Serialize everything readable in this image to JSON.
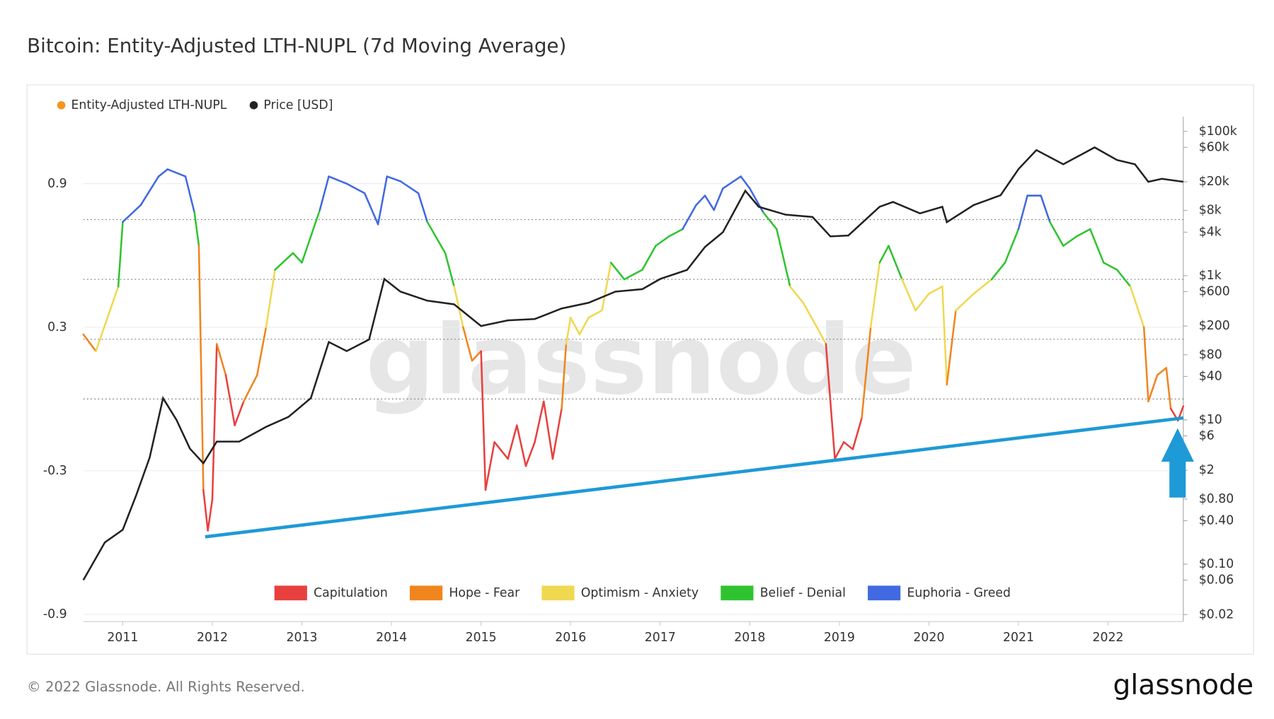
{
  "chart_data": {
    "type": "line",
    "title": "Bitcoin: Entity-Adjusted LTH-NUPL (7d Moving Average)",
    "xlim": [
      2010.56,
      2022.84
    ],
    "xticks": [
      2011,
      2012,
      2013,
      2014,
      2015,
      2016,
      2017,
      2018,
      2019,
      2020,
      2021,
      2022
    ],
    "ylim": [
      -0.93,
      1.18
    ],
    "yticks": [
      0.9,
      0.3,
      -0.3,
      -0.9
    ],
    "y2lim": [
      0.016,
      160000
    ],
    "y2log": true,
    "y2ticks": [
      {
        "value": 100000,
        "label": "$100k"
      },
      {
        "value": 60000,
        "label": "$60k"
      },
      {
        "value": 20000,
        "label": "$20k"
      },
      {
        "value": 8000,
        "label": "$8k"
      },
      {
        "value": 4000,
        "label": "$4k"
      },
      {
        "value": 1000,
        "label": "$1k"
      },
      {
        "value": 600,
        "label": "$600"
      },
      {
        "value": 200,
        "label": "$200"
      },
      {
        "value": 80,
        "label": "$80"
      },
      {
        "value": 40,
        "label": "$40"
      },
      {
        "value": 10,
        "label": "$10"
      },
      {
        "value": 6,
        "label": "$6"
      },
      {
        "value": 2,
        "label": "$2"
      },
      {
        "value": 0.8,
        "label": "$0.80"
      },
      {
        "value": 0.4,
        "label": "$0.40"
      },
      {
        "value": 0.1,
        "label": "$0.10"
      },
      {
        "value": 0.06,
        "label": "$0.06"
      },
      {
        "value": 0.02,
        "label": "$0.02"
      }
    ],
    "grid": true,
    "legend": "top-left",
    "hlines": [
      0,
      0.25,
      0.5,
      0.75
    ],
    "zones": [
      {
        "name": "Capitulation",
        "color": "#e8403f"
      },
      {
        "name": "Hope - Fear",
        "color": "#f0851e"
      },
      {
        "name": "Optimism - Anxiety",
        "color": "#f0d850"
      },
      {
        "name": "Belief - Denial",
        "color": "#2fc42f"
      },
      {
        "name": "Euphoria - Greed",
        "color": "#4169e1"
      }
    ],
    "series": [
      {
        "name": "Entity-Adjusted LTH-NUPL",
        "color": "#f7931a",
        "x": [
          2010.56,
          2010.7,
          2010.95,
          2011.0,
          2011.2,
          2011.4,
          2011.5,
          2011.7,
          2011.8,
          2011.85,
          2011.9,
          2011.95,
          2012.0,
          2012.05,
          2012.15,
          2012.25,
          2012.35,
          2012.5,
          2012.6,
          2012.7,
          2012.9,
          2013.0,
          2013.1,
          2013.2,
          2013.3,
          2013.5,
          2013.7,
          2013.85,
          2013.95,
          2014.1,
          2014.3,
          2014.4,
          2014.6,
          2014.7,
          2014.8,
          2014.9,
          2015.0,
          2015.05,
          2015.15,
          2015.3,
          2015.4,
          2015.5,
          2015.6,
          2015.7,
          2015.8,
          2015.9,
          2015.95,
          2016.0,
          2016.1,
          2016.2,
          2016.35,
          2016.45,
          2016.6,
          2016.8,
          2016.95,
          2017.1,
          2017.25,
          2017.4,
          2017.5,
          2017.6,
          2017.7,
          2017.9,
          2018.0,
          2018.15,
          2018.3,
          2018.45,
          2018.6,
          2018.75,
          2018.85,
          2018.95,
          2019.05,
          2019.15,
          2019.25,
          2019.35,
          2019.45,
          2019.55,
          2019.7,
          2019.85,
          2020.0,
          2020.15,
          2020.2,
          2020.3,
          2020.5,
          2020.7,
          2020.85,
          2021.0,
          2021.1,
          2021.25,
          2021.35,
          2021.5,
          2021.65,
          2021.8,
          2021.95,
          2022.1,
          2022.25,
          2022.4,
          2022.45,
          2022.55,
          2022.65,
          2022.7,
          2022.78,
          2022.84
        ],
        "values": [
          0.27,
          0.2,
          0.47,
          0.74,
          0.81,
          0.93,
          0.96,
          0.93,
          0.78,
          0.64,
          -0.38,
          -0.55,
          -0.42,
          0.23,
          0.1,
          -0.11,
          -0.01,
          0.1,
          0.3,
          0.54,
          0.61,
          0.57,
          0.68,
          0.79,
          0.93,
          0.9,
          0.86,
          0.73,
          0.93,
          0.91,
          0.86,
          0.74,
          0.61,
          0.47,
          0.3,
          0.16,
          0.2,
          -0.38,
          -0.18,
          -0.25,
          -0.11,
          -0.28,
          -0.18,
          -0.01,
          -0.25,
          -0.04,
          0.23,
          0.34,
          0.27,
          0.34,
          0.37,
          0.57,
          0.5,
          0.54,
          0.64,
          0.68,
          0.71,
          0.81,
          0.85,
          0.79,
          0.88,
          0.93,
          0.88,
          0.78,
          0.71,
          0.47,
          0.4,
          0.3,
          0.23,
          -0.25,
          -0.18,
          -0.21,
          -0.08,
          0.3,
          0.57,
          0.64,
          0.5,
          0.37,
          0.44,
          0.47,
          0.06,
          0.37,
          0.44,
          0.5,
          0.57,
          0.71,
          0.85,
          0.85,
          0.74,
          0.64,
          0.68,
          0.71,
          0.57,
          0.54,
          0.47,
          0.3,
          -0.01,
          0.1,
          0.13,
          -0.04,
          -0.09,
          -0.03
        ]
      },
      {
        "name": "Price [USD]",
        "color": "#222222",
        "axis": "y2",
        "x": [
          2010.56,
          2010.8,
          2011.0,
          2011.15,
          2011.3,
          2011.45,
          2011.6,
          2011.75,
          2011.9,
          2012.05,
          2012.3,
          2012.6,
          2012.85,
          2013.1,
          2013.3,
          2013.5,
          2013.75,
          2013.92,
          2014.1,
          2014.4,
          2014.7,
          2015.0,
          2015.3,
          2015.6,
          2015.9,
          2016.2,
          2016.5,
          2016.8,
          2017.0,
          2017.3,
          2017.5,
          2017.7,
          2017.95,
          2018.1,
          2018.4,
          2018.7,
          2018.9,
          2019.1,
          2019.45,
          2019.6,
          2019.9,
          2020.15,
          2020.2,
          2020.5,
          2020.8,
          2021.0,
          2021.2,
          2021.5,
          2021.85,
          2022.1,
          2022.3,
          2022.45,
          2022.6,
          2022.84
        ],
        "values": [
          0.06,
          0.2,
          0.3,
          0.9,
          3,
          20,
          10,
          4,
          2.5,
          5,
          5,
          8,
          11,
          20,
          120,
          90,
          130,
          900,
          600,
          450,
          400,
          200,
          240,
          250,
          350,
          420,
          600,
          650,
          900,
          1200,
          2500,
          4000,
          15000,
          9000,
          7000,
          6500,
          3500,
          3600,
          9000,
          10500,
          7300,
          9000,
          5500,
          9500,
          13000,
          30000,
          55000,
          35000,
          60000,
          40000,
          35000,
          20000,
          22000,
          20000
        ]
      }
    ],
    "annotation_line": {
      "x": [
        2011.92,
        2022.84
      ],
      "values": [
        -0.576,
        -0.079
      ],
      "color": "#1e9ad6"
    },
    "watermark": "glassnode",
    "footer": {
      "copyright": "© 2022 Glassnode. All Rights Reserved.",
      "logo": "glassnode"
    }
  }
}
